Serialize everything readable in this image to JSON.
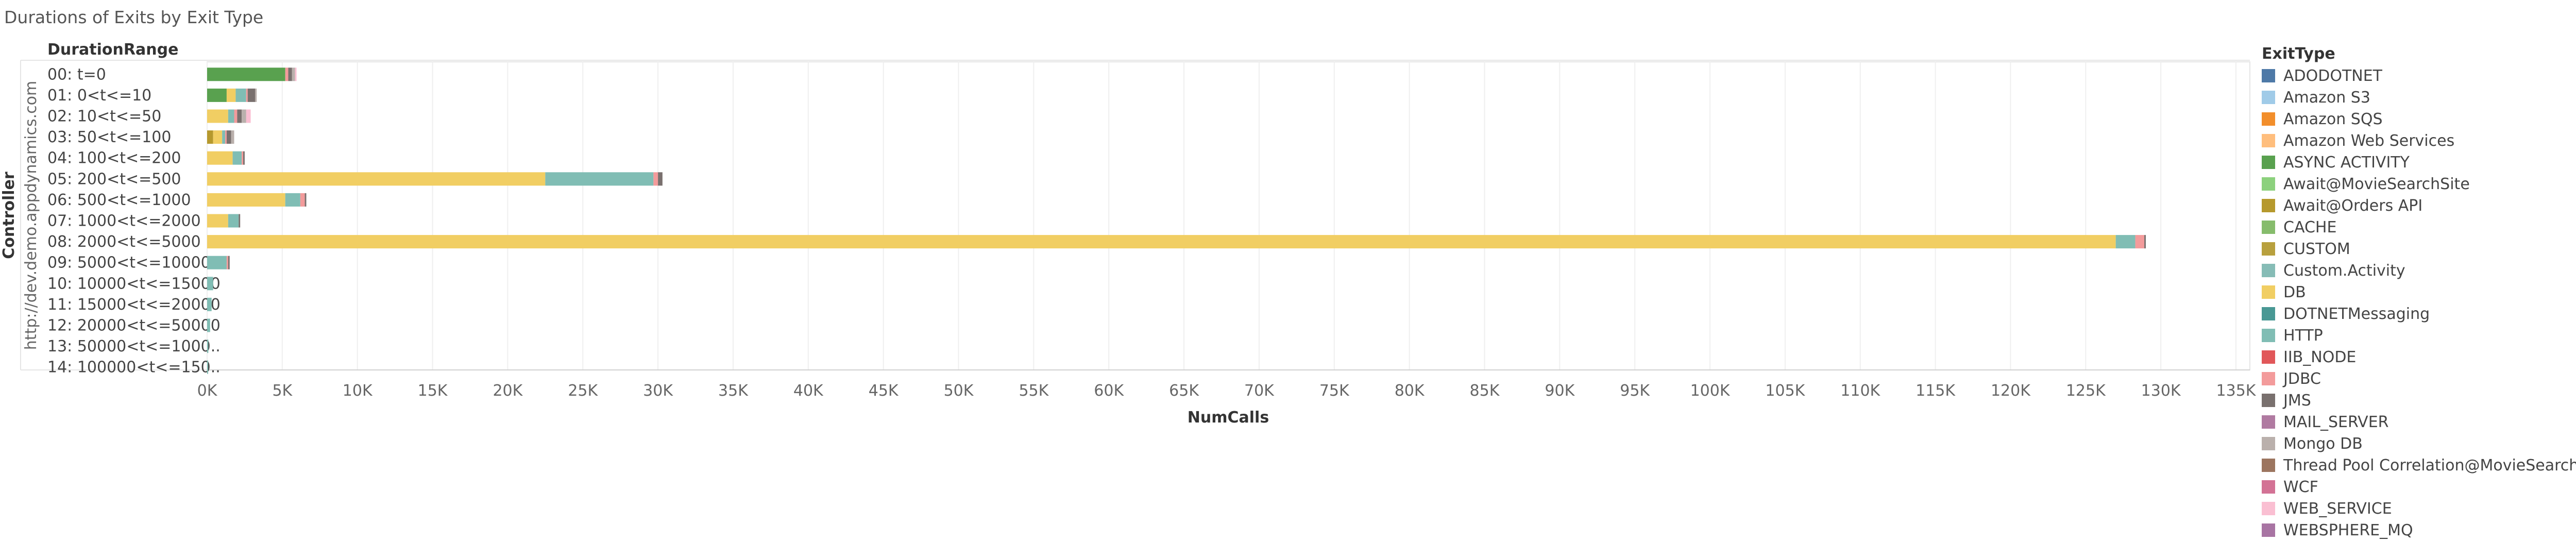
{
  "chart_title": "Durations of Exits by Exit Type",
  "chart_data": {
    "type": "bar",
    "orientation": "horizontal",
    "stacked": true,
    "title": "Durations of Exits by Exit Type",
    "xlabel": "NumCalls",
    "row_dim_label": "Controller",
    "row_dim_value": "http://dev.demo.appdynamics.com",
    "category_header": "DurationRange",
    "xlim": [
      0,
      135000
    ],
    "x_ticks": [
      "0K",
      "5K",
      "10K",
      "15K",
      "20K",
      "25K",
      "30K",
      "35K",
      "40K",
      "45K",
      "50K",
      "55K",
      "60K",
      "65K",
      "70K",
      "75K",
      "80K",
      "85K",
      "90K",
      "95K",
      "100K",
      "105K",
      "110K",
      "115K",
      "120K",
      "125K",
      "130K",
      "135K"
    ],
    "grid": true,
    "legend_title": "ExitType",
    "legend_position": "right",
    "categories": [
      "00: t=0",
      "01: 0<t<=10",
      "02: 10<t<=50",
      "03: 50<t<=100",
      "04: 100<t<=200",
      "05: 200<t<=500",
      "06: 500<t<=1000",
      "07: 1000<t<=2000",
      "08: 2000<t<=5000",
      "09: 5000<t<=10000",
      "10: 10000<t<=15000",
      "11: 15000<t<=20000",
      "12: 20000<t<=50000",
      "13: 50000<t<=1000..",
      "14: 100000<t<=150.."
    ],
    "series": [
      {
        "name": "ADODOTNET",
        "color": "#4e79a7",
        "values": [
          0,
          0,
          0,
          0,
          0,
          0,
          0,
          0,
          0,
          0,
          0,
          0,
          0,
          0,
          0
        ]
      },
      {
        "name": "Amazon S3",
        "color": "#a0cbe8",
        "values": [
          0,
          0,
          0,
          0,
          0,
          0,
          0,
          0,
          0,
          0,
          0,
          0,
          0,
          0,
          0
        ]
      },
      {
        "name": "Amazon SQS",
        "color": "#f28e2b",
        "values": [
          0,
          0,
          0,
          0,
          0,
          0,
          0,
          0,
          0,
          0,
          0,
          0,
          0,
          0,
          0
        ]
      },
      {
        "name": "Amazon Web Services",
        "color": "#ffbe7d",
        "values": [
          0,
          0,
          0,
          0,
          0,
          0,
          0,
          0,
          0,
          0,
          0,
          0,
          0,
          0,
          0
        ]
      },
      {
        "name": "ASYNC ACTIVITY",
        "color": "#59a14f",
        "values": [
          5200,
          1300,
          0,
          0,
          0,
          0,
          0,
          0,
          0,
          0,
          0,
          0,
          0,
          0,
          0
        ]
      },
      {
        "name": "Await@MovieSearchSite",
        "color": "#8cd17d",
        "values": [
          0,
          0,
          0,
          0,
          0,
          0,
          0,
          0,
          0,
          0,
          0,
          0,
          0,
          0,
          0
        ]
      },
      {
        "name": "Await@Orders API",
        "color": "#b6992d",
        "values": [
          0,
          0,
          0,
          400,
          0,
          0,
          0,
          0,
          0,
          0,
          0,
          0,
          0,
          0,
          0
        ]
      },
      {
        "name": "CACHE",
        "color": "#86bc6c",
        "values": [
          0,
          0,
          0,
          0,
          0,
          0,
          0,
          0,
          0,
          0,
          0,
          0,
          0,
          0,
          0
        ]
      },
      {
        "name": "CUSTOM",
        "color": "#b8a03e",
        "values": [
          0,
          0,
          0,
          0,
          0,
          0,
          0,
          0,
          0,
          0,
          0,
          0,
          0,
          0,
          0
        ]
      },
      {
        "name": "Custom.Activity",
        "color": "#86bcb6",
        "values": [
          0,
          0,
          0,
          0,
          0,
          0,
          0,
          0,
          0,
          0,
          0,
          0,
          0,
          0,
          0
        ]
      },
      {
        "name": "DB",
        "color": "#f1ce63",
        "values": [
          0,
          600,
          1400,
          600,
          1700,
          22500,
          5200,
          1400,
          127000,
          0,
          0,
          0,
          0,
          0,
          0
        ]
      },
      {
        "name": "DOTNETMessaging",
        "color": "#499894",
        "values": [
          0,
          0,
          0,
          0,
          0,
          0,
          0,
          0,
          0,
          0,
          0,
          0,
          0,
          0,
          0
        ]
      },
      {
        "name": "HTTP",
        "color": "#80bdb4",
        "values": [
          0,
          700,
          400,
          200,
          600,
          7200,
          1000,
          700,
          1300,
          1300,
          400,
          300,
          200,
          80,
          50
        ]
      },
      {
        "name": "IIB_NODE",
        "color": "#e15759",
        "values": [
          0,
          0,
          0,
          0,
          0,
          0,
          0,
          0,
          0,
          0,
          0,
          0,
          0,
          0,
          0
        ]
      },
      {
        "name": "JDBC",
        "color": "#f39b9b",
        "values": [
          200,
          100,
          200,
          100,
          100,
          300,
          300,
          0,
          600,
          100,
          0,
          0,
          0,
          0,
          0
        ]
      },
      {
        "name": "JMS",
        "color": "#79706e",
        "values": [
          250,
          500,
          300,
          300,
          100,
          300,
          100,
          100,
          100,
          100,
          0,
          0,
          0,
          0,
          0
        ]
      },
      {
        "name": "MAIL_SERVER",
        "color": "#b07aa1",
        "values": [
          0,
          0,
          0,
          0,
          0,
          0,
          0,
          0,
          0,
          0,
          0,
          0,
          0,
          0,
          0
        ]
      },
      {
        "name": "Mongo DB",
        "color": "#bab0ac",
        "values": [
          200,
          100,
          300,
          200,
          0,
          0,
          0,
          0,
          0,
          0,
          0,
          0,
          0,
          0,
          0
        ]
      },
      {
        "name": "Thread Pool Correlation@MovieSearchSite",
        "color": "#9c755f",
        "values": [
          0,
          0,
          0,
          0,
          0,
          0,
          0,
          0,
          0,
          0,
          0,
          0,
          0,
          0,
          0
        ]
      },
      {
        "name": "WCF",
        "color": "#d37295",
        "values": [
          0,
          0,
          0,
          0,
          0,
          0,
          0,
          0,
          0,
          0,
          0,
          0,
          0,
          0,
          0
        ]
      },
      {
        "name": "WEB_SERVICE",
        "color": "#fabfd2",
        "values": [
          100,
          0,
          300,
          0,
          0,
          0,
          0,
          0,
          0,
          0,
          0,
          0,
          0,
          0,
          0
        ]
      },
      {
        "name": "WEBSPHERE_MQ",
        "color": "#a874a3",
        "values": [
          0,
          0,
          0,
          0,
          0,
          0,
          0,
          0,
          0,
          0,
          0,
          0,
          0,
          0,
          0
        ]
      }
    ]
  }
}
